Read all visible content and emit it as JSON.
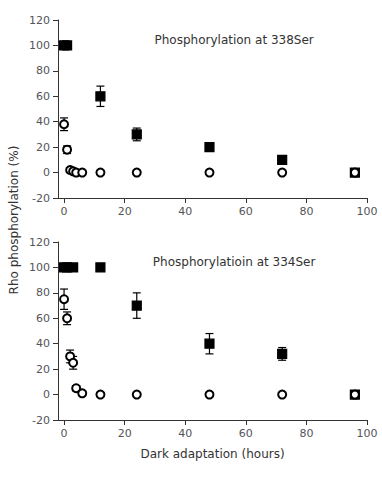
{
  "chart_data": [
    {
      "type": "scatter",
      "title": "Phosphorylation at 338Ser",
      "ylabel": "Rho phosphorylation (%)",
      "xlim": [
        -2,
        100
      ],
      "xticks": [
        0,
        20,
        40,
        60,
        80,
        100
      ],
      "ylim": [
        -20,
        120
      ],
      "yticks": [
        -20,
        0,
        20,
        40,
        60,
        80,
        100,
        120
      ],
      "grid": false,
      "series": [
        {
          "marker": "square",
          "color": "#000000",
          "x": [
            0,
            1,
            12,
            24,
            48,
            72,
            96
          ],
          "values": [
            100,
            100,
            60,
            30,
            20,
            10,
            0
          ],
          "yerr": [
            0,
            0,
            8,
            5,
            3,
            2,
            1
          ]
        },
        {
          "marker": "circle_open",
          "color": "#000000",
          "x": [
            0,
            1,
            2,
            3,
            4,
            6,
            12,
            24,
            48,
            72,
            96
          ],
          "values": [
            38,
            18,
            2,
            1,
            0,
            0,
            0,
            0,
            0,
            0,
            0
          ],
          "yerr": [
            5,
            3,
            1,
            0.5,
            0,
            0,
            0,
            0,
            0,
            0,
            0
          ]
        }
      ]
    },
    {
      "type": "scatter",
      "title": "Phosphorylatioin at 334Ser",
      "xlabel": "Dark adaptation (hours)",
      "xlim": [
        -2,
        100
      ],
      "xticks": [
        0,
        20,
        40,
        60,
        80,
        100
      ],
      "ylim": [
        -20,
        120
      ],
      "yticks": [
        -20,
        0,
        20,
        40,
        60,
        80,
        100,
        120
      ],
      "grid": false,
      "series": [
        {
          "marker": "square",
          "color": "#000000",
          "x": [
            0,
            1,
            3,
            12,
            24,
            48,
            72,
            96
          ],
          "values": [
            100,
            100,
            100,
            100,
            70,
            40,
            32,
            0
          ],
          "yerr": [
            0,
            0,
            0,
            0,
            10,
            8,
            5,
            1
          ]
        },
        {
          "marker": "circle_open",
          "color": "#000000",
          "x": [
            0,
            1,
            2,
            3,
            4,
            6,
            12,
            24,
            48,
            72,
            96
          ],
          "values": [
            75,
            60,
            30,
            25,
            5,
            1,
            0,
            0,
            0,
            0,
            0
          ],
          "yerr": [
            8,
            5,
            5,
            5,
            2,
            1,
            0,
            0,
            0,
            0,
            0
          ]
        }
      ]
    }
  ]
}
